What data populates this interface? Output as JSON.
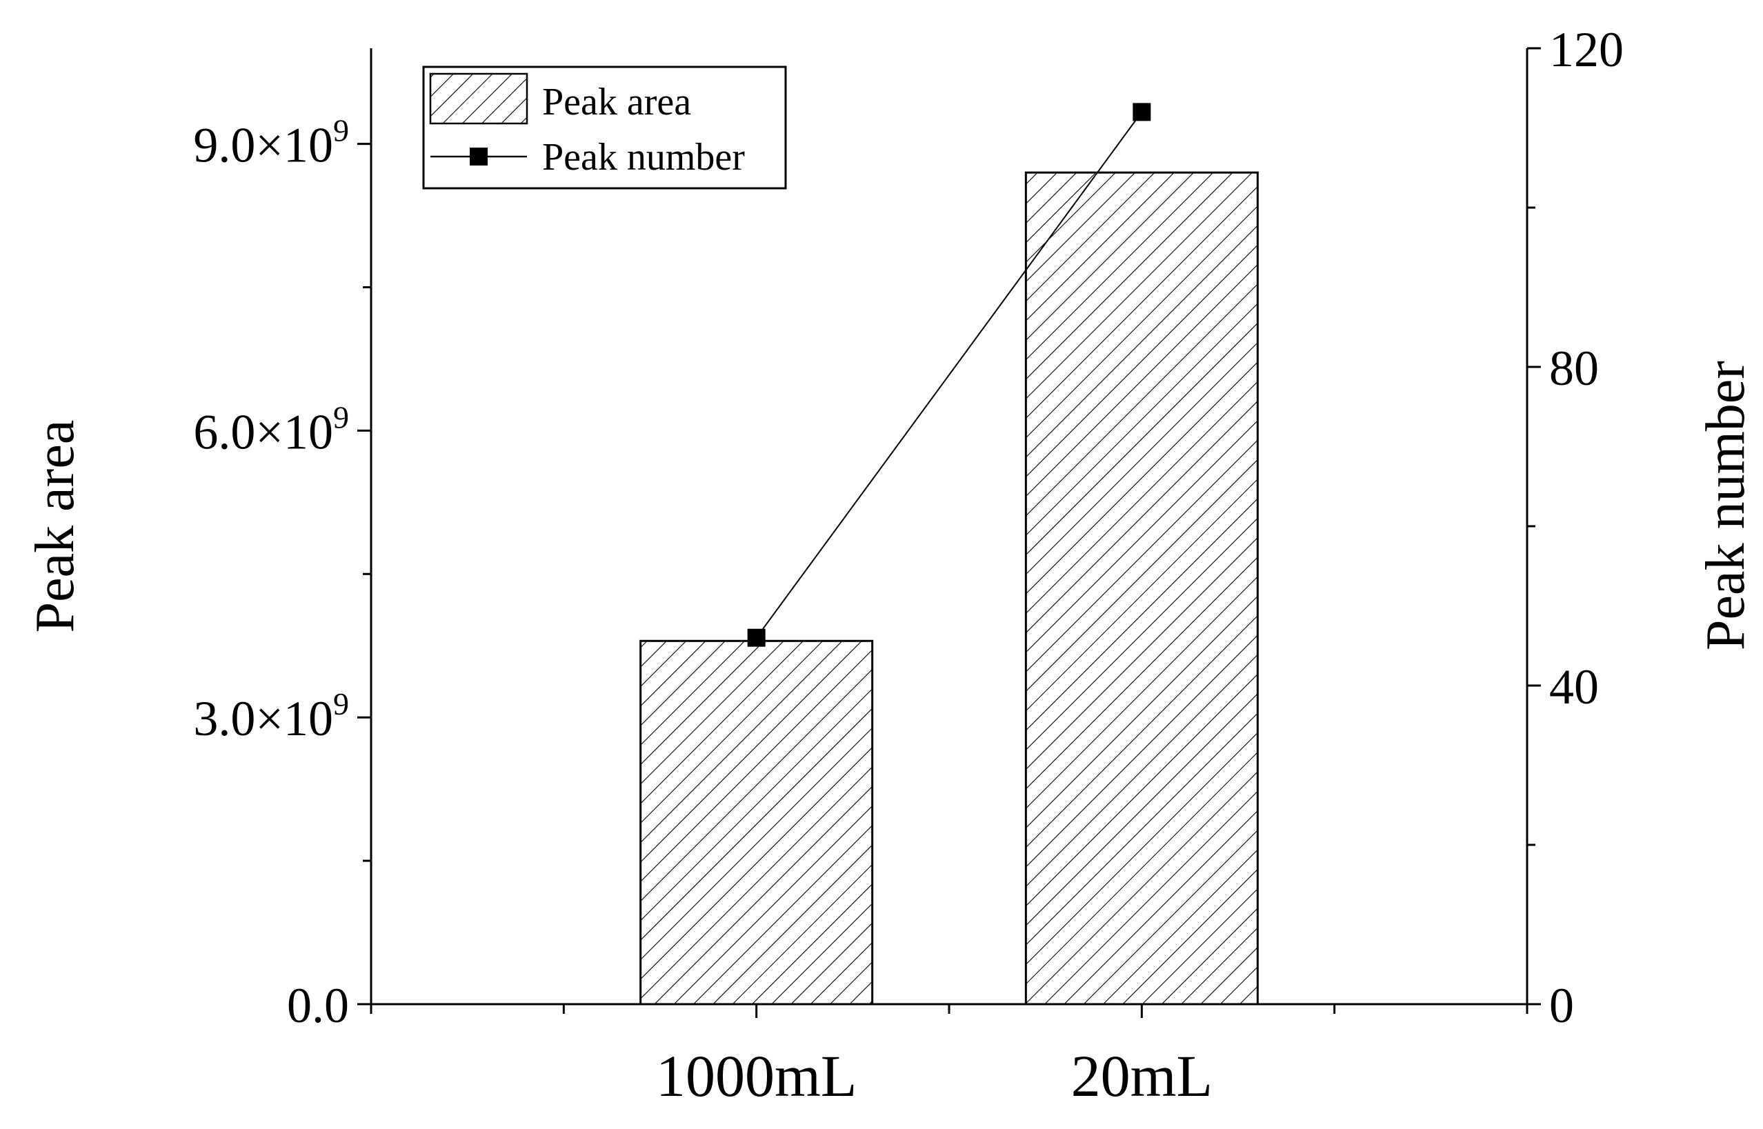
{
  "chart_data": {
    "type": "bar+line",
    "categories": [
      "1000mL",
      "20mL"
    ],
    "series": [
      {
        "name": "Peak area",
        "type": "bar",
        "axis": "left",
        "values": [
          3800000000,
          8700000000
        ]
      },
      {
        "name": "Peak number",
        "type": "line",
        "axis": "right",
        "values": [
          46,
          112
        ]
      }
    ],
    "title": "",
    "xlabel": "",
    "ylabel": "Peak area",
    "y2label": "Peak number",
    "ylim": [
      0,
      10000000000
    ],
    "y2lim": [
      0,
      120
    ],
    "yticks": [
      {
        "value": 0,
        "label": "0.0"
      },
      {
        "value": 3000000000,
        "label": "3.0×10",
        "exp": "9"
      },
      {
        "value": 6000000000,
        "label": "6.0×10",
        "exp": "9"
      },
      {
        "value": 9000000000,
        "label": "9.0×10",
        "exp": "9"
      }
    ],
    "y2ticks": [
      {
        "value": 0,
        "label": "0"
      },
      {
        "value": 40,
        "label": "40"
      },
      {
        "value": 80,
        "label": "80"
      },
      {
        "value": 120,
        "label": "120"
      }
    ],
    "grid": false,
    "legend": "top-left",
    "bar_pattern": "diagonal-hatch",
    "colors": {
      "axis": "#000000",
      "bar_fill": "#ffffff",
      "hatch": "#000000",
      "line": "#000000"
    }
  }
}
